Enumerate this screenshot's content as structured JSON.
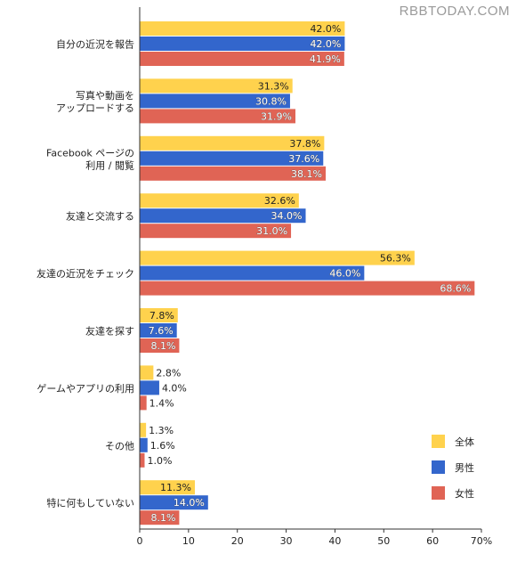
{
  "watermark": "RBBTODAY.COM",
  "chart_data": {
    "type": "bar",
    "orientation": "horizontal",
    "categories": [
      [
        "自分の近況を報告"
      ],
      [
        "写真や動画を",
        "アップロードする"
      ],
      [
        "Facebook ページの",
        "利用 / 閲覧"
      ],
      [
        "友達と交流する"
      ],
      [
        "友達の近況をチェック"
      ],
      [
        "友達を探す"
      ],
      [
        "ゲームやアプリの利用"
      ],
      [
        "その他"
      ],
      [
        "特に何もしていない"
      ]
    ],
    "series": [
      {
        "name": "全体",
        "color": "#FFD24D",
        "values": [
          42.0,
          31.3,
          37.8,
          32.6,
          56.3,
          7.8,
          2.8,
          1.3,
          11.3
        ]
      },
      {
        "name": "男性",
        "color": "#3366CC",
        "values": [
          42.0,
          30.8,
          37.6,
          34.0,
          46.0,
          7.6,
          4.0,
          1.6,
          14.0
        ]
      },
      {
        "name": "女性",
        "color": "#E06455",
        "values": [
          41.9,
          31.9,
          38.1,
          31.0,
          68.6,
          8.1,
          1.4,
          1.0,
          8.1
        ]
      }
    ],
    "value_labels": [
      [
        "42.0%",
        "31.3%",
        "37.8%",
        "32.6%",
        "56.3%",
        "7.8%",
        "2.8%",
        "1.3%",
        "11.3%"
      ],
      [
        "42.0%",
        "30.8%",
        "37.6%",
        "34.0%",
        "46.0%",
        "7.6%",
        "4.0%",
        "1.6%",
        "14.0%"
      ],
      [
        "41.9%",
        "31.9%",
        "38.1%",
        "31.0%",
        "68.6%",
        "8.1%",
        "1.4%",
        "1.0%",
        "8.1%"
      ]
    ],
    "xlim": [
      0,
      70
    ],
    "x_ticks": [
      0,
      10,
      20,
      30,
      40,
      50,
      60,
      70
    ],
    "x_tick_labels": [
      "0",
      "10",
      "20",
      "30",
      "40",
      "50",
      "60",
      "70%"
    ],
    "legend_position": "bottom-right",
    "grid": false
  }
}
